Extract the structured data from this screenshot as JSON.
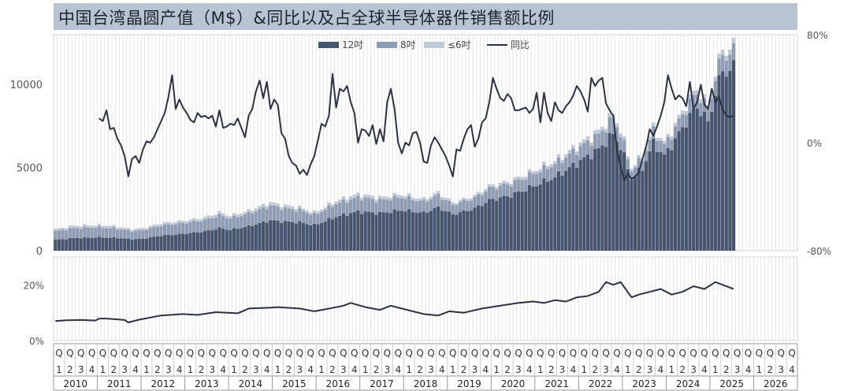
{
  "title": "中国台湾晶圆产值（M$）&同比以及占全球半导体器件销售额比例",
  "colors": {
    "c12": "#46556d",
    "c8": "#8e9db3",
    "c6": "#bfc8d6",
    "yoy": "#2b3342",
    "share": "#2b3342",
    "title_bg": "#b8c4d2"
  },
  "chart_data": [
    {
      "type": "bar",
      "stacked": true,
      "x_unit": "month",
      "x_start": "2010-01",
      "x_end": "2025-07",
      "axis_extends_to": "2026-12",
      "legend": {
        "position": "top",
        "entries": [
          "12吋",
          "8吋",
          "≤6吋",
          "同比"
        ]
      },
      "y_left": {
        "ticks": [
          0,
          5000,
          10000
        ],
        "tick_labels": [
          "0",
          "5000",
          "10000"
        ],
        "range": [
          0,
          13000
        ]
      },
      "y_right": {
        "ticks": [
          -0.8,
          0,
          0.8
        ],
        "tick_labels": [
          "-80%",
          "0%",
          "80%"
        ],
        "range": [
          -0.8,
          0.8
        ]
      },
      "grid": {
        "vertical": true,
        "horizontal": false
      },
      "series": [
        {
          "name": "12吋",
          "kind": "bar",
          "color_key": "c12"
        },
        {
          "name": "8吋",
          "kind": "bar",
          "color_key": "c8"
        },
        {
          "name": "≤6吋",
          "kind": "bar",
          "color_key": "c6"
        },
        {
          "name": "同比",
          "kind": "line",
          "axis": "right",
          "color_key": "yoy"
        }
      ],
      "total_anchors": [
        [
          "2010-01",
          1300
        ],
        [
          "2010-06",
          1500
        ],
        [
          "2011-01",
          1550
        ],
        [
          "2011-06",
          1450
        ],
        [
          "2011-10",
          1300
        ],
        [
          "2012-01",
          1350
        ],
        [
          "2012-06",
          1650
        ],
        [
          "2012-12",
          1800
        ],
        [
          "2013-06",
          2000
        ],
        [
          "2013-10",
          2300
        ],
        [
          "2014-01",
          2100
        ],
        [
          "2014-06",
          2400
        ],
        [
          "2014-12",
          2900
        ],
        [
          "2015-03",
          2750
        ],
        [
          "2015-08",
          2600
        ],
        [
          "2015-12",
          2300
        ],
        [
          "2016-01",
          2400
        ],
        [
          "2016-06",
          3000
        ],
        [
          "2016-12",
          3400
        ],
        [
          "2017-06",
          3200
        ],
        [
          "2017-12",
          3400
        ],
        [
          "2018-06",
          3100
        ],
        [
          "2018-10",
          3500
        ],
        [
          "2019-02",
          2900
        ],
        [
          "2019-08",
          3300
        ],
        [
          "2019-12",
          3900
        ],
        [
          "2020-06",
          4200
        ],
        [
          "2020-12",
          4800
        ],
        [
          "2021-06",
          5400
        ],
        [
          "2021-12",
          6300
        ],
        [
          "2022-06",
          7200
        ],
        [
          "2022-10",
          8200
        ],
        [
          "2022-12",
          7300
        ],
        [
          "2023-03",
          5000
        ],
        [
          "2023-06",
          5700
        ],
        [
          "2023-09",
          7400
        ],
        [
          "2023-12",
          6500
        ],
        [
          "2024-03",
          7600
        ],
        [
          "2024-06",
          8800
        ],
        [
          "2024-09",
          9800
        ],
        [
          "2024-12",
          8700
        ],
        [
          "2025-02",
          10600
        ],
        [
          "2025-04",
          12200
        ],
        [
          "2025-06",
          12000
        ],
        [
          "2025-07",
          12400
        ]
      ],
      "share8_anchors": [
        [
          "2010-01",
          0.4
        ],
        [
          "2012-01",
          0.38
        ],
        [
          "2014-01",
          0.33
        ],
        [
          "2016-01",
          0.27
        ],
        [
          "2018-01",
          0.23
        ],
        [
          "2020-01",
          0.18
        ],
        [
          "2022-01",
          0.13
        ],
        [
          "2023-06",
          0.1
        ],
        [
          "2025-07",
          0.08
        ]
      ],
      "share6_anchors": [
        [
          "2010-01",
          0.1
        ],
        [
          "2013-01",
          0.08
        ],
        [
          "2016-01",
          0.06
        ],
        [
          "2020-01",
          0.04
        ],
        [
          "2023-01",
          0.03
        ],
        [
          "2025-07",
          0.025
        ]
      ],
      "yoy_points": [
        [
          "2011-01",
          0.18
        ],
        [
          "2011-02",
          0.16
        ],
        [
          "2011-03",
          0.24
        ],
        [
          "2011-04",
          0.1
        ],
        [
          "2011-05",
          0.11
        ],
        [
          "2011-06",
          0.03
        ],
        [
          "2011-07",
          -0.02
        ],
        [
          "2011-08",
          -0.1
        ],
        [
          "2011-09",
          -0.25
        ],
        [
          "2011-10",
          -0.12
        ],
        [
          "2011-11",
          -0.1
        ],
        [
          "2011-12",
          -0.15
        ],
        [
          "2012-01",
          -0.05
        ],
        [
          "2012-02",
          0.01
        ],
        [
          "2012-03",
          0.0
        ],
        [
          "2012-04",
          0.04
        ],
        [
          "2012-05",
          0.1
        ],
        [
          "2012-06",
          0.16
        ],
        [
          "2012-07",
          0.22
        ],
        [
          "2012-08",
          0.34
        ],
        [
          "2012-09",
          0.5
        ],
        [
          "2012-10",
          0.25
        ],
        [
          "2012-11",
          0.32
        ],
        [
          "2012-12",
          0.26
        ],
        [
          "2013-01",
          0.22
        ],
        [
          "2013-02",
          0.17
        ],
        [
          "2013-03",
          0.15
        ],
        [
          "2013-04",
          0.22
        ],
        [
          "2013-05",
          0.19
        ],
        [
          "2013-06",
          0.2
        ],
        [
          "2013-07",
          0.18
        ],
        [
          "2013-08",
          0.2
        ],
        [
          "2013-09",
          0.12
        ],
        [
          "2013-10",
          0.24
        ],
        [
          "2013-11",
          0.11
        ],
        [
          "2013-12",
          0.12
        ],
        [
          "2014-01",
          0.14
        ],
        [
          "2014-02",
          0.13
        ],
        [
          "2014-03",
          0.18
        ],
        [
          "2014-04",
          0.11
        ],
        [
          "2014-05",
          0.04
        ],
        [
          "2014-06",
          0.2
        ],
        [
          "2014-07",
          0.25
        ],
        [
          "2014-08",
          0.38
        ],
        [
          "2014-09",
          0.46
        ],
        [
          "2014-10",
          0.33
        ],
        [
          "2014-11",
          0.45
        ],
        [
          "2014-12",
          0.25
        ],
        [
          "2015-01",
          0.32
        ],
        [
          "2015-02",
          0.28
        ],
        [
          "2015-03",
          0.07
        ],
        [
          "2015-04",
          0.03
        ],
        [
          "2015-05",
          -0.1
        ],
        [
          "2015-06",
          -0.15
        ],
        [
          "2015-07",
          -0.17
        ],
        [
          "2015-08",
          -0.23
        ],
        [
          "2015-09",
          -0.2
        ],
        [
          "2015-10",
          -0.24
        ],
        [
          "2015-11",
          -0.16
        ],
        [
          "2015-12",
          -0.1
        ],
        [
          "2016-01",
          0.02
        ],
        [
          "2016-02",
          0.14
        ],
        [
          "2016-03",
          0.12
        ],
        [
          "2016-04",
          0.2
        ],
        [
          "2016-05",
          0.51
        ],
        [
          "2016-06",
          0.26
        ],
        [
          "2016-07",
          0.4
        ],
        [
          "2016-08",
          0.38
        ],
        [
          "2016-09",
          0.42
        ],
        [
          "2016-10",
          0.3
        ],
        [
          "2016-11",
          0.22
        ],
        [
          "2016-12",
          0.0
        ],
        [
          "2017-01",
          0.1
        ],
        [
          "2017-02",
          0.09
        ],
        [
          "2017-03",
          0.05
        ],
        [
          "2017-04",
          0.13
        ],
        [
          "2017-05",
          -0.01
        ],
        [
          "2017-06",
          0.1
        ],
        [
          "2017-07",
          0.01
        ],
        [
          "2017-08",
          0.3
        ],
        [
          "2017-09",
          0.4
        ],
        [
          "2017-10",
          0.25
        ],
        [
          "2017-11",
          0.0
        ],
        [
          "2017-12",
          -0.08
        ],
        [
          "2018-01",
          0.0
        ],
        [
          "2018-02",
          -0.02
        ],
        [
          "2018-03",
          0.07
        ],
        [
          "2018-04",
          0.08
        ],
        [
          "2018-05",
          0.0
        ],
        [
          "2018-06",
          -0.14
        ],
        [
          "2018-07",
          -0.15
        ],
        [
          "2018-08",
          -0.02
        ],
        [
          "2018-09",
          0.04
        ],
        [
          "2018-10",
          0.0
        ],
        [
          "2018-11",
          -0.05
        ],
        [
          "2018-12",
          -0.1
        ],
        [
          "2019-01",
          -0.17
        ],
        [
          "2019-02",
          -0.25
        ],
        [
          "2019-03",
          -0.05
        ],
        [
          "2019-04",
          -0.06
        ],
        [
          "2019-05",
          0.03
        ],
        [
          "2019-06",
          0.1
        ],
        [
          "2019-07",
          0.13
        ],
        [
          "2019-08",
          -0.03
        ],
        [
          "2019-09",
          0.03
        ],
        [
          "2019-10",
          0.15
        ],
        [
          "2019-11",
          0.18
        ],
        [
          "2019-12",
          0.3
        ],
        [
          "2020-01",
          0.48
        ],
        [
          "2020-02",
          0.4
        ],
        [
          "2020-03",
          0.33
        ],
        [
          "2020-04",
          0.31
        ],
        [
          "2020-05",
          0.36
        ],
        [
          "2020-06",
          0.33
        ],
        [
          "2020-07",
          0.24
        ],
        [
          "2020-08",
          0.24
        ],
        [
          "2020-09",
          0.25
        ],
        [
          "2020-10",
          0.26
        ],
        [
          "2020-11",
          0.22
        ],
        [
          "2020-12",
          0.25
        ],
        [
          "2021-01",
          0.37
        ],
        [
          "2021-02",
          0.15
        ],
        [
          "2021-03",
          0.37
        ],
        [
          "2021-04",
          0.22
        ],
        [
          "2021-05",
          0.16
        ],
        [
          "2021-06",
          0.3
        ],
        [
          "2021-07",
          0.24
        ],
        [
          "2021-08",
          0.22
        ],
        [
          "2021-09",
          0.27
        ],
        [
          "2021-10",
          0.3
        ],
        [
          "2021-11",
          0.35
        ],
        [
          "2021-12",
          0.42
        ],
        [
          "2022-01",
          0.38
        ],
        [
          "2022-02",
          0.32
        ],
        [
          "2022-03",
          0.23
        ],
        [
          "2022-04",
          0.48
        ],
        [
          "2022-05",
          0.42
        ],
        [
          "2022-06",
          0.46
        ],
        [
          "2022-07",
          0.48
        ],
        [
          "2022-08",
          0.29
        ],
        [
          "2022-09",
          0.24
        ],
        [
          "2022-10",
          0.2
        ],
        [
          "2022-11",
          -0.05
        ],
        [
          "2022-12",
          -0.18
        ],
        [
          "2023-01",
          -0.28
        ],
        [
          "2023-02",
          -0.23
        ],
        [
          "2023-03",
          -0.27
        ],
        [
          "2023-04",
          -0.25
        ],
        [
          "2023-05",
          -0.22
        ],
        [
          "2023-06",
          -0.12
        ],
        [
          "2023-07",
          -0.03
        ],
        [
          "2023-08",
          0.1
        ],
        [
          "2023-09",
          0.05
        ],
        [
          "2023-10",
          0.12
        ],
        [
          "2023-11",
          0.2
        ],
        [
          "2023-12",
          0.3
        ],
        [
          "2024-01",
          0.5
        ],
        [
          "2024-02",
          0.4
        ],
        [
          "2024-03",
          0.32
        ],
        [
          "2024-04",
          0.35
        ],
        [
          "2024-05",
          0.33
        ],
        [
          "2024-06",
          0.27
        ],
        [
          "2024-07",
          0.45
        ],
        [
          "2024-08",
          0.25
        ],
        [
          "2024-09",
          0.3
        ],
        [
          "2024-10",
          0.43
        ],
        [
          "2024-11",
          0.28
        ],
        [
          "2024-12",
          0.25
        ],
        [
          "2025-01",
          0.4
        ],
        [
          "2025-02",
          0.3
        ],
        [
          "2025-03",
          0.34
        ],
        [
          "2025-04",
          0.25
        ],
        [
          "2025-05",
          0.2
        ],
        [
          "2025-06",
          0.19
        ],
        [
          "2025-07",
          0.2
        ]
      ]
    },
    {
      "type": "line",
      "y": {
        "ticks": [
          0,
          0.2
        ],
        "tick_labels": [
          "0%",
          "20%"
        ],
        "range": [
          0,
          0.3
        ]
      },
      "series": [
        {
          "name": "",
          "color_key": "share",
          "points": [
            [
              "2010-01",
              0.07
            ],
            [
              "2010-04",
              0.073
            ],
            [
              "2010-08",
              0.074
            ],
            [
              "2010-12",
              0.072
            ],
            [
              "2011-01",
              0.079
            ],
            [
              "2011-03",
              0.079
            ],
            [
              "2011-08",
              0.074
            ],
            [
              "2011-09",
              0.065
            ],
            [
              "2011-12",
              0.075
            ],
            [
              "2012-06",
              0.09
            ],
            [
              "2012-12",
              0.095
            ],
            [
              "2013-04",
              0.092
            ],
            [
              "2013-09",
              0.102
            ],
            [
              "2014-03",
              0.098
            ],
            [
              "2014-06",
              0.115
            ],
            [
              "2014-12",
              0.118
            ],
            [
              "2015-02",
              0.12
            ],
            [
              "2015-08",
              0.115
            ],
            [
              "2015-12",
              0.105
            ],
            [
              "2016-03",
              0.112
            ],
            [
              "2016-08",
              0.125
            ],
            [
              "2016-10",
              0.135
            ],
            [
              "2017-02",
              0.12
            ],
            [
              "2017-06",
              0.11
            ],
            [
              "2017-09",
              0.125
            ],
            [
              "2017-12",
              0.115
            ],
            [
              "2018-03",
              0.105
            ],
            [
              "2018-06",
              0.095
            ],
            [
              "2018-10",
              0.09
            ],
            [
              "2019-01",
              0.105
            ],
            [
              "2019-05",
              0.1
            ],
            [
              "2019-10",
              0.115
            ],
            [
              "2020-03",
              0.125
            ],
            [
              "2020-08",
              0.135
            ],
            [
              "2020-12",
              0.14
            ],
            [
              "2021-03",
              0.135
            ],
            [
              "2021-06",
              0.145
            ],
            [
              "2021-09",
              0.14
            ],
            [
              "2021-12",
              0.155
            ],
            [
              "2022-03",
              0.16
            ],
            [
              "2022-06",
              0.175
            ],
            [
              "2022-08",
              0.21
            ],
            [
              "2022-10",
              0.2
            ],
            [
              "2022-12",
              0.21
            ],
            [
              "2023-03",
              0.155
            ],
            [
              "2023-05",
              0.165
            ],
            [
              "2023-08",
              0.175
            ],
            [
              "2023-11",
              0.185
            ],
            [
              "2024-02",
              0.165
            ],
            [
              "2024-05",
              0.175
            ],
            [
              "2024-08",
              0.195
            ],
            [
              "2024-11",
              0.185
            ],
            [
              "2025-02",
              0.21
            ],
            [
              "2025-04",
              0.2
            ],
            [
              "2025-07",
              0.185
            ]
          ]
        }
      ]
    }
  ],
  "x_axis": {
    "quarter_labels": [
      "Q1",
      "Q2",
      "Q3",
      "Q4"
    ],
    "years": [
      "2010",
      "2011",
      "2012",
      "2013",
      "2014",
      "2015",
      "2016",
      "2017",
      "2018",
      "2019",
      "2020",
      "2021",
      "2022",
      "2023",
      "2024",
      "2025",
      "2026"
    ]
  }
}
